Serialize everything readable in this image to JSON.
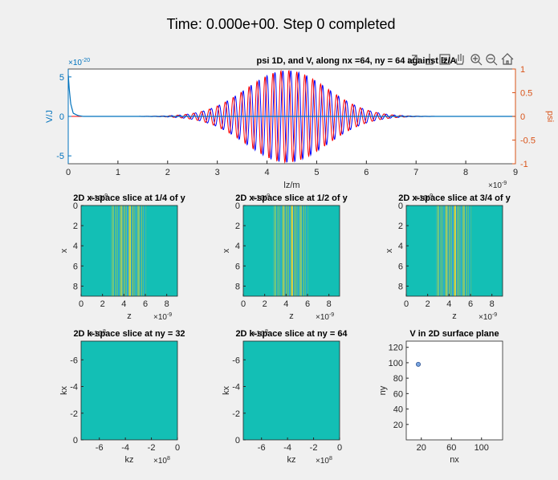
{
  "figure": {
    "title": "Time: 0.000e+00. Step 0 completed"
  },
  "toolbar": {
    "icons": [
      "export-icon",
      "brush-icon",
      "data-tips-icon",
      "pan-icon",
      "zoom-in-icon",
      "zoom-out-icon",
      "home-icon"
    ]
  },
  "chart_data": [
    {
      "id": "psi1d",
      "type": "line",
      "title": "psi 1D, and V, along nx =64, ny = 64 against lz/A",
      "xlabel": "lz/m",
      "ylabel_left": "V/J",
      "ylabel_right": "psi",
      "xlim": [
        0,
        9e-09
      ],
      "ylim_left": [
        -6e-20,
        6e-20
      ],
      "ylim_right": [
        -1,
        1
      ],
      "x_ticks": [
        "0",
        "1",
        "2",
        "3",
        "4",
        "5",
        "6",
        "7",
        "8",
        "9"
      ],
      "x_exponent": "×10^-9",
      "y_left_ticks": [
        "5",
        "0",
        "-5"
      ],
      "y_left_exponent": "×10^-20",
      "y_right_ticks": [
        "1",
        "0.5",
        "0",
        "-0.5",
        "-1"
      ],
      "series": [
        {
          "axis": "right",
          "color": "#0000ff",
          "envelope_center": 4.4e-09,
          "envelope_width": 1.15e-09,
          "wavelength": 1.6e-10,
          "amplitude": 0.97
        },
        {
          "axis": "right",
          "color": "#ff0000",
          "envelope_center": 4.4e-09,
          "envelope_width": 1.15e-09,
          "wavelength": 1.6e-10,
          "amplitude": 0.97
        },
        {
          "axis": "left",
          "color": "#0072bd",
          "x": [
            0,
            2e-11,
            5e-11,
            1e-10,
            2e-10,
            3e-10,
            9e-09
          ],
          "values": [
            5.3e-20,
            3.5e-20,
            1.6e-20,
            4e-21,
            1e-21,
            0,
            0
          ]
        }
      ]
    },
    {
      "id": "xslice1",
      "type": "heatmap",
      "title": "2D x-space slice at 1/4 of y",
      "xlabel": "z",
      "ylabel": "x",
      "x_exponent": "×10^-9",
      "y_exponent": "×10^-9",
      "x_ticks": [
        "0",
        "2",
        "4",
        "6",
        "8"
      ],
      "y_ticks": [
        "0",
        "2",
        "4",
        "6",
        "8"
      ],
      "xlim": [
        0,
        9
      ],
      "ylim": [
        0,
        9
      ],
      "bg_color": "#13bfb5",
      "stripe_center": 4.4,
      "stripe_width": 1.15,
      "stripe_wavelength": 0.16
    },
    {
      "id": "xslice2",
      "type": "heatmap",
      "title": "2D x-space slice at 1/2 of y",
      "xlabel": "z",
      "ylabel": "x",
      "x_exponent": "×10^-9",
      "y_exponent": "×10^-9",
      "x_ticks": [
        "0",
        "2",
        "4",
        "6",
        "8"
      ],
      "y_ticks": [
        "0",
        "2",
        "4",
        "6",
        "8"
      ],
      "xlim": [
        0,
        9
      ],
      "ylim": [
        0,
        9
      ],
      "bg_color": "#13bfb5",
      "stripe_center": 4.4,
      "stripe_width": 1.15,
      "stripe_wavelength": 0.16
    },
    {
      "id": "xslice3",
      "type": "heatmap",
      "title": "2D x-space slice at 3/4 of y",
      "xlabel": "z",
      "ylabel": "x",
      "x_exponent": "×10^-9",
      "y_exponent": "×10^-9",
      "x_ticks": [
        "0",
        "2",
        "4",
        "6",
        "8"
      ],
      "y_ticks": [
        "0",
        "2",
        "4",
        "6",
        "8"
      ],
      "xlim": [
        0,
        9
      ],
      "ylim": [
        0,
        9
      ],
      "bg_color": "#13bfb5",
      "stripe_center": 4.4,
      "stripe_width": 1.15,
      "stripe_wavelength": 0.16
    },
    {
      "id": "kslice1",
      "type": "heatmap",
      "title": "2D k-space slice at ny = 32",
      "xlabel": "kz",
      "ylabel": "kx",
      "x_exponent": "×10^8",
      "y_exponent": "×10^8",
      "x_ticks": [
        "-6",
        "-4",
        "-2",
        "0"
      ],
      "y_ticks": [
        "-6",
        "-4",
        "-2",
        "0"
      ],
      "xlim": [
        -7.4,
        0
      ],
      "ylim": [
        -7.4,
        0
      ],
      "bg_color": "#13bfb5"
    },
    {
      "id": "kslice2",
      "type": "heatmap",
      "title": "2D k-space slice at ny = 64",
      "xlabel": "kz",
      "ylabel": "kx",
      "x_exponent": "×10^8",
      "y_exponent": "×10^8",
      "x_ticks": [
        "-6",
        "-4",
        "-2",
        "0"
      ],
      "y_ticks": [
        "-6",
        "-4",
        "-2",
        "0"
      ],
      "xlim": [
        -7.4,
        0
      ],
      "ylim": [
        -7.4,
        0
      ],
      "bg_color": "#13bfb5"
    },
    {
      "id": "vsurface",
      "type": "scatter",
      "title": "V in 2D surface plane",
      "xlabel": "nx",
      "ylabel": "ny",
      "x_ticks": [
        "20",
        "60",
        "100"
      ],
      "y_ticks": [
        "20",
        "40",
        "60",
        "80",
        "100",
        "120"
      ],
      "xlim": [
        0,
        128
      ],
      "ylim": [
        0,
        128
      ],
      "points": [
        {
          "x": 16,
          "y": 98
        }
      ]
    }
  ]
}
